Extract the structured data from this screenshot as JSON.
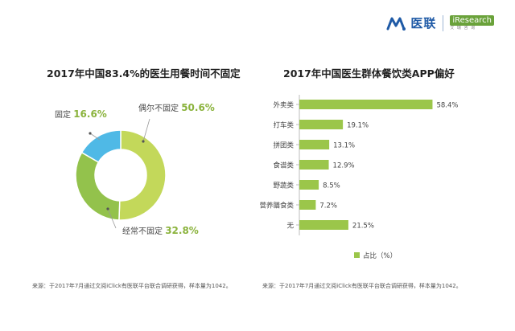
{
  "brand": {
    "name": "医联",
    "partner": "iResearch",
    "partner_sub": "艾 瑞 咨 询"
  },
  "colors": {
    "green": "#9bc64a",
    "green_dark": "#8bb33d",
    "blue": "#4fb9e6",
    "accent": "#8bb33d",
    "text": "#333333"
  },
  "chart_data": [
    {
      "type": "pie",
      "title": "2017年中国83.4%的医生用餐时间不固定",
      "labels": [
        "偶尔不固定",
        "经常不固定",
        "固定"
      ],
      "values": [
        50.6,
        32.8,
        16.6
      ],
      "display_values": [
        "50.6%",
        "32.8%",
        "16.6%"
      ],
      "colors": [
        "#c3d85a",
        "#93c24c",
        "#4fb9e6"
      ],
      "donut": true
    },
    {
      "type": "bar",
      "orientation": "horizontal",
      "title": "2017年中国医生群体餐饮类APP偏好",
      "categories": [
        "外卖类",
        "打车类",
        "拼团类",
        "食谱类",
        "野蔬类",
        "营养膳食类",
        "无"
      ],
      "values": [
        58.4,
        19.1,
        13.1,
        12.9,
        8.5,
        7.2,
        21.5
      ],
      "display_values": [
        "58.4%",
        "19.1%",
        "13.1%",
        "12.9%",
        "8.5%",
        "7.2%",
        "21.5%"
      ],
      "legend": "占比（%）",
      "legend_position": "bottom",
      "xlim": [
        0,
        60
      ],
      "grid": false
    }
  ],
  "sources": {
    "left": "来源：于2017年7月通过文阅iClick有医联平台联合调研获得，样本量为1042。",
    "right": "来源：于2017年7月通过文阅iClick有医联平台联合调研获得，样本量为1042。"
  }
}
